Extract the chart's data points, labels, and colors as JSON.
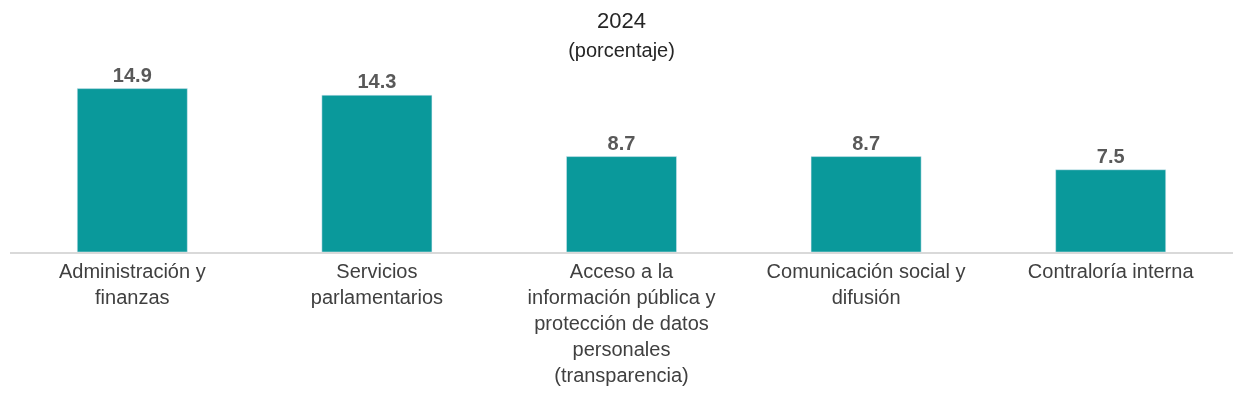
{
  "chart_data": {
    "type": "bar",
    "title": "2024",
    "subtitle": "(porcentaje)",
    "categories": [
      "Administración y finanzas",
      "Servicios parlamentarios",
      "Acceso a la información pública y protección de datos personales (transparencia)",
      "Comunicación social y difusión",
      "Contraloría interna"
    ],
    "values": [
      14.9,
      14.3,
      8.7,
      8.7,
      7.5
    ],
    "color": "#0a999b",
    "data_labels": true,
    "legend": false
  }
}
